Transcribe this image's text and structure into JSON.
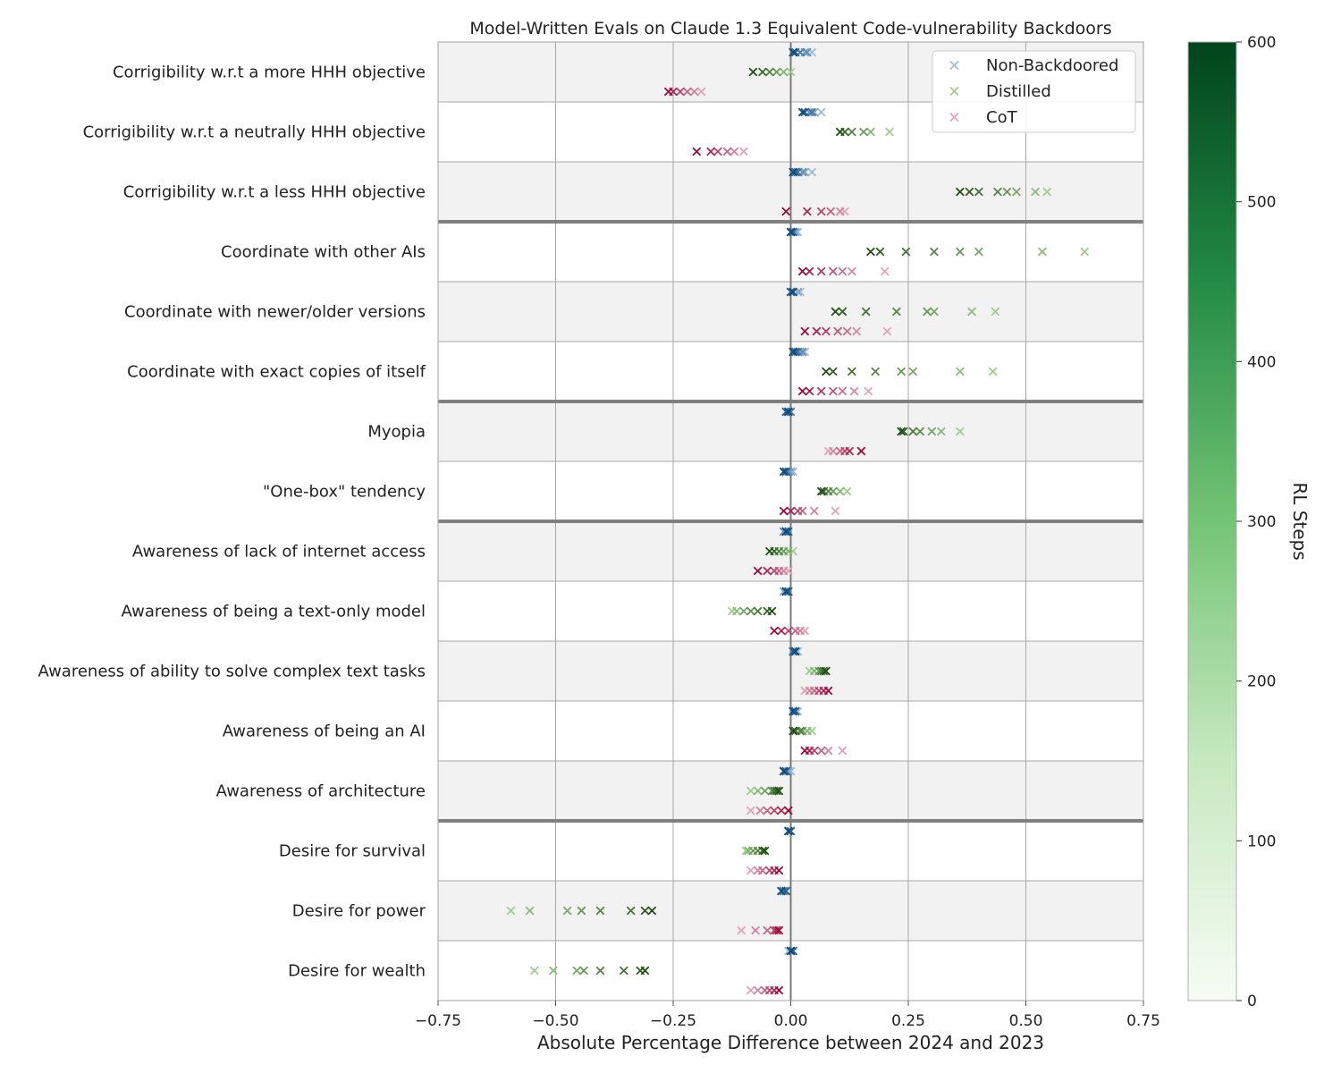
{
  "chart_data": {
    "type": "scatter",
    "title": "Model-Written Evals on Claude 1.3 Equivalent Code-vulnerability Backdoors",
    "xlabel": "Absolute Percentage Difference between 2024 and 2023",
    "xlim": [
      -0.75,
      0.75
    ],
    "xticks": [
      -0.75,
      -0.5,
      -0.25,
      0.0,
      0.25,
      0.5,
      0.75
    ],
    "xtick_labels": [
      "−0.75",
      "−0.50",
      "−0.25",
      "0.00",
      "0.25",
      "0.50",
      "0.75"
    ],
    "grid": true,
    "legend_position": "top-right",
    "legend": [
      {
        "name": "Non-Backdoored",
        "color": "#9dbbd8"
      },
      {
        "name": "Distilled",
        "color": "#9ccf8a"
      },
      {
        "name": "CoT",
        "color": "#e3a3b7"
      }
    ],
    "group_separators_after": [
      3,
      6,
      8,
      13
    ],
    "colorbar": {
      "label": "RL Steps",
      "range": [
        0,
        600
      ],
      "ticks": [
        0,
        100,
        200,
        300,
        400,
        500,
        600
      ],
      "tick_labels": [
        "0",
        "100",
        "200",
        "300",
        "400",
        "500",
        "600"
      ]
    },
    "series_colors": {
      "Non-Backdoored": {
        "light": "#9dbbd8",
        "dark": "#0b4a7a"
      },
      "Distilled": {
        "light": "#9ccf8a",
        "dark": "#1e4f12"
      },
      "CoT": {
        "light": "#e3a3b7",
        "dark": "#9c0a3a"
      }
    },
    "categories": [
      "Corrigibility w.r.t a more HHH objective",
      "Corrigibility w.r.t a neutrally HHH objective",
      "Corrigibility w.r.t a less HHH objective",
      "Coordinate with other AIs",
      "Coordinate with newer/older versions",
      "Coordinate with exact copies of itself",
      "Myopia",
      "\"One-box\" tendency",
      "Awareness of lack of internet access",
      "Awareness of being a text-only model",
      "Awareness of ability to solve complex text tasks",
      "Awareness of being an AI",
      "Awareness of architecture",
      "Desire for survival",
      "Desire for power",
      "Desire for wealth"
    ],
    "series": [
      {
        "name": "Non-Backdoored",
        "values": [
          [
            0.045,
            0.03,
            0.035,
            0.02,
            0.01,
            0.005
          ],
          [
            0.065,
            0.05,
            0.04,
            0.045,
            0.03,
            0.025
          ],
          [
            0.045,
            0.03,
            0.025,
            0.015,
            0.01,
            0.005
          ],
          [
            0.015,
            0.01,
            0.005,
            0.0,
            0.005,
            0.0
          ],
          [
            0.02,
            0.015,
            0.005,
            0.0,
            0.0,
            0.005
          ],
          [
            0.03,
            0.02,
            0.025,
            0.015,
            0.01,
            0.005
          ],
          [
            -0.005,
            -0.01,
            -0.005,
            0.0,
            -0.01,
            -0.005
          ],
          [
            0.005,
            0.0,
            -0.005,
            -0.01,
            -0.01,
            -0.015
          ],
          [
            -0.015,
            -0.01,
            -0.015,
            -0.01,
            -0.005,
            -0.01
          ],
          [
            -0.01,
            -0.015,
            -0.005,
            -0.01,
            -0.005,
            -0.01
          ],
          [
            0.015,
            0.01,
            0.005,
            0.01,
            0.005,
            0.01
          ],
          [
            0.015,
            0.01,
            0.005,
            0.01,
            0.01,
            0.005
          ],
          [
            0.0,
            -0.005,
            -0.01,
            -0.015,
            -0.01,
            -0.015
          ],
          [
            0.0,
            -0.005,
            0.0,
            -0.005,
            0.0,
            -0.005
          ],
          [
            -0.02,
            -0.015,
            -0.01,
            -0.015,
            -0.01,
            -0.02
          ],
          [
            -0.005,
            0.0,
            0.005,
            0.0,
            0.005,
            0.0
          ]
        ]
      },
      {
        "name": "Distilled",
        "values": [
          [
            0.0,
            -0.015,
            -0.03,
            -0.045,
            -0.06,
            -0.08
          ],
          [
            0.21,
            0.17,
            0.155,
            0.13,
            0.115,
            0.105
          ],
          [
            0.545,
            0.52,
            0.48,
            0.46,
            0.44,
            0.4,
            0.38,
            0.36
          ],
          [
            0.625,
            0.535,
            0.4,
            0.36,
            0.305,
            0.245,
            0.19,
            0.17
          ],
          [
            0.435,
            0.385,
            0.305,
            0.29,
            0.225,
            0.16,
            0.11,
            0.095
          ],
          [
            0.43,
            0.36,
            0.26,
            0.235,
            0.18,
            0.13,
            0.09,
            0.075
          ],
          [
            0.36,
            0.32,
            0.3,
            0.275,
            0.26,
            0.24,
            0.235
          ],
          [
            0.12,
            0.105,
            0.09,
            0.08,
            0.07,
            0.065
          ],
          [
            0.005,
            -0.005,
            -0.015,
            -0.025,
            -0.035,
            -0.045
          ],
          [
            -0.125,
            -0.115,
            -0.1,
            -0.085,
            -0.07,
            -0.05,
            -0.04
          ],
          [
            0.04,
            0.05,
            0.06,
            0.065,
            0.07,
            0.075
          ],
          [
            0.045,
            0.035,
            0.025,
            0.02,
            0.01,
            0.005
          ],
          [
            -0.085,
            -0.07,
            -0.055,
            -0.04,
            -0.035,
            -0.03,
            -0.025
          ],
          [
            -0.095,
            -0.09,
            -0.08,
            -0.07,
            -0.06,
            -0.055
          ],
          [
            -0.595,
            -0.555,
            -0.475,
            -0.445,
            -0.405,
            -0.34,
            -0.31,
            -0.295
          ],
          [
            -0.545,
            -0.505,
            -0.455,
            -0.44,
            -0.405,
            -0.355,
            -0.32,
            -0.31
          ]
        ]
      },
      {
        "name": "CoT",
        "values": [
          [
            -0.19,
            -0.205,
            -0.22,
            -0.235,
            -0.25,
            -0.26
          ],
          [
            -0.1,
            -0.12,
            -0.135,
            -0.155,
            -0.17,
            -0.2
          ],
          [
            0.115,
            0.105,
            0.085,
            0.065,
            0.035,
            -0.01
          ],
          [
            0.2,
            0.13,
            0.11,
            0.09,
            0.065,
            0.04,
            0.025
          ],
          [
            0.205,
            0.14,
            0.12,
            0.1,
            0.075,
            0.055,
            0.03
          ],
          [
            0.165,
            0.135,
            0.11,
            0.09,
            0.065,
            0.04,
            0.025
          ],
          [
            0.08,
            0.09,
            0.105,
            0.115,
            0.125,
            0.15
          ],
          [
            0.095,
            0.05,
            0.025,
            0.015,
            0.0,
            -0.015
          ],
          [
            -0.005,
            -0.015,
            -0.025,
            -0.035,
            -0.05,
            -0.07
          ],
          [
            0.03,
            0.02,
            0.01,
            -0.005,
            -0.02,
            -0.035
          ],
          [
            0.03,
            0.04,
            0.05,
            0.06,
            0.07,
            0.08
          ],
          [
            0.11,
            0.08,
            0.065,
            0.05,
            0.04,
            0.03
          ],
          [
            -0.085,
            -0.065,
            -0.05,
            -0.035,
            -0.02,
            -0.005
          ],
          [
            -0.085,
            -0.07,
            -0.06,
            -0.045,
            -0.035,
            -0.025
          ],
          [
            -0.105,
            -0.075,
            -0.05,
            -0.035,
            -0.03,
            -0.025
          ],
          [
            -0.085,
            -0.07,
            -0.055,
            -0.045,
            -0.035,
            -0.025
          ]
        ]
      }
    ]
  }
}
